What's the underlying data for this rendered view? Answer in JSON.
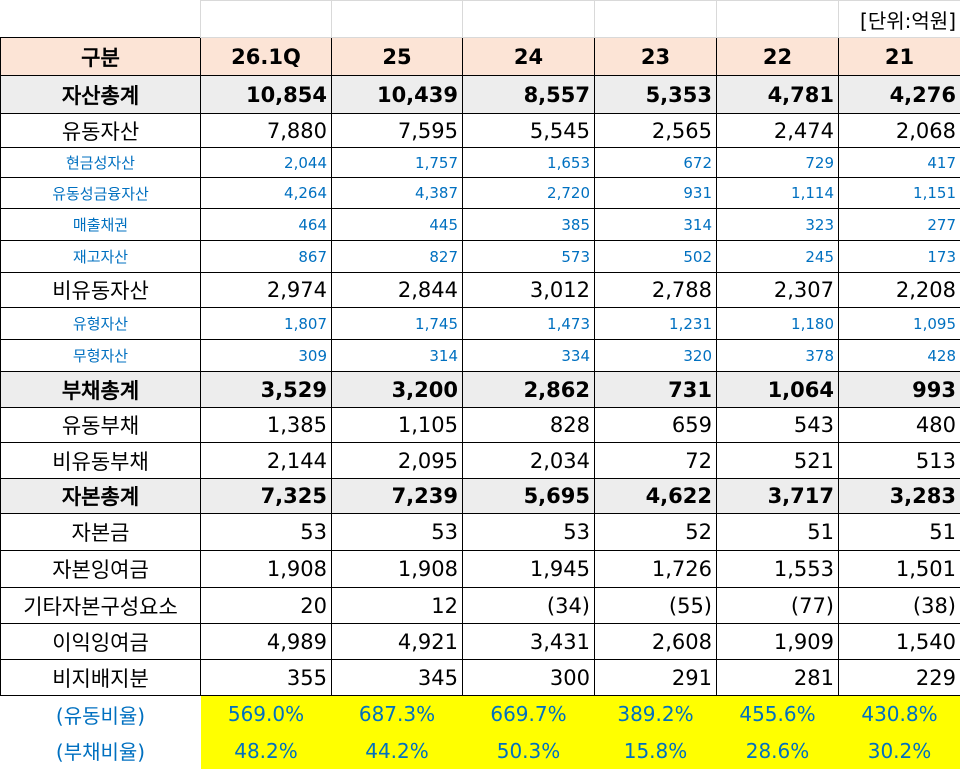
{
  "unit": "[단위:억원]",
  "header": [
    "구분",
    "26.1Q",
    "25",
    "24",
    "23",
    "22",
    "21"
  ],
  "rows": [
    {
      "label": "자산총계",
      "values": [
        "10,854",
        "10,439",
        "8,557",
        "5,353",
        "4,781",
        "4,276"
      ]
    },
    {
      "label": "유동자산",
      "values": [
        "7,880",
        "7,595",
        "5,545",
        "2,565",
        "2,474",
        "2,068"
      ]
    },
    {
      "label": "현금성자산",
      "values": [
        "2,044",
        "1,757",
        "1,653",
        "672",
        "729",
        "417"
      ]
    },
    {
      "label": "유동성금융자산",
      "values": [
        "4,264",
        "4,387",
        "2,720",
        "931",
        "1,114",
        "1,151"
      ]
    },
    {
      "label": "매출채권",
      "values": [
        "464",
        "445",
        "385",
        "314",
        "323",
        "277"
      ]
    },
    {
      "label": "재고자산",
      "values": [
        "867",
        "827",
        "573",
        "502",
        "245",
        "173"
      ]
    },
    {
      "label": "비유동자산",
      "values": [
        "2,974",
        "2,844",
        "3,012",
        "2,788",
        "2,307",
        "2,208"
      ]
    },
    {
      "label": "유형자산",
      "values": [
        "1,807",
        "1,745",
        "1,473",
        "1,231",
        "1,180",
        "1,095"
      ]
    },
    {
      "label": "무형자산",
      "values": [
        "309",
        "314",
        "334",
        "320",
        "378",
        "428"
      ]
    },
    {
      "label": "부채총계",
      "values": [
        "3,529",
        "3,200",
        "2,862",
        "731",
        "1,064",
        "993"
      ]
    },
    {
      "label": "유동부채",
      "values": [
        "1,385",
        "1,105",
        "828",
        "659",
        "543",
        "480"
      ]
    },
    {
      "label": "비유동부채",
      "values": [
        "2,144",
        "2,095",
        "2,034",
        "72",
        "521",
        "513"
      ]
    },
    {
      "label": "자본총계",
      "values": [
        "7,325",
        "7,239",
        "5,695",
        "4,622",
        "3,717",
        "3,283"
      ]
    },
    {
      "label": "자본금",
      "values": [
        "53",
        "53",
        "53",
        "52",
        "51",
        "51"
      ]
    },
    {
      "label": "자본잉여금",
      "values": [
        "1,908",
        "1,908",
        "1,945",
        "1,726",
        "1,553",
        "1,501"
      ]
    },
    {
      "label": "기타자본구성요소",
      "values": [
        "20",
        "12",
        "(34)",
        "(55)",
        "(77)",
        "(38)"
      ]
    },
    {
      "label": "이익잉여금",
      "values": [
        "4,989",
        "4,921",
        "3,431",
        "2,608",
        "1,909",
        "1,540"
      ]
    },
    {
      "label": "비지배지분",
      "values": [
        "355",
        "345",
        "300",
        "291",
        "281",
        "229"
      ]
    }
  ],
  "ratios": [
    {
      "label": "(유동비율)",
      "values": [
        "569.0%",
        "687.3%",
        "669.7%",
        "389.2%",
        "455.6%",
        "430.8%"
      ]
    },
    {
      "label": "(부채비율)",
      "values": [
        "48.2%",
        "44.2%",
        "50.3%",
        "15.8%",
        "28.6%",
        "30.2%"
      ]
    }
  ]
}
